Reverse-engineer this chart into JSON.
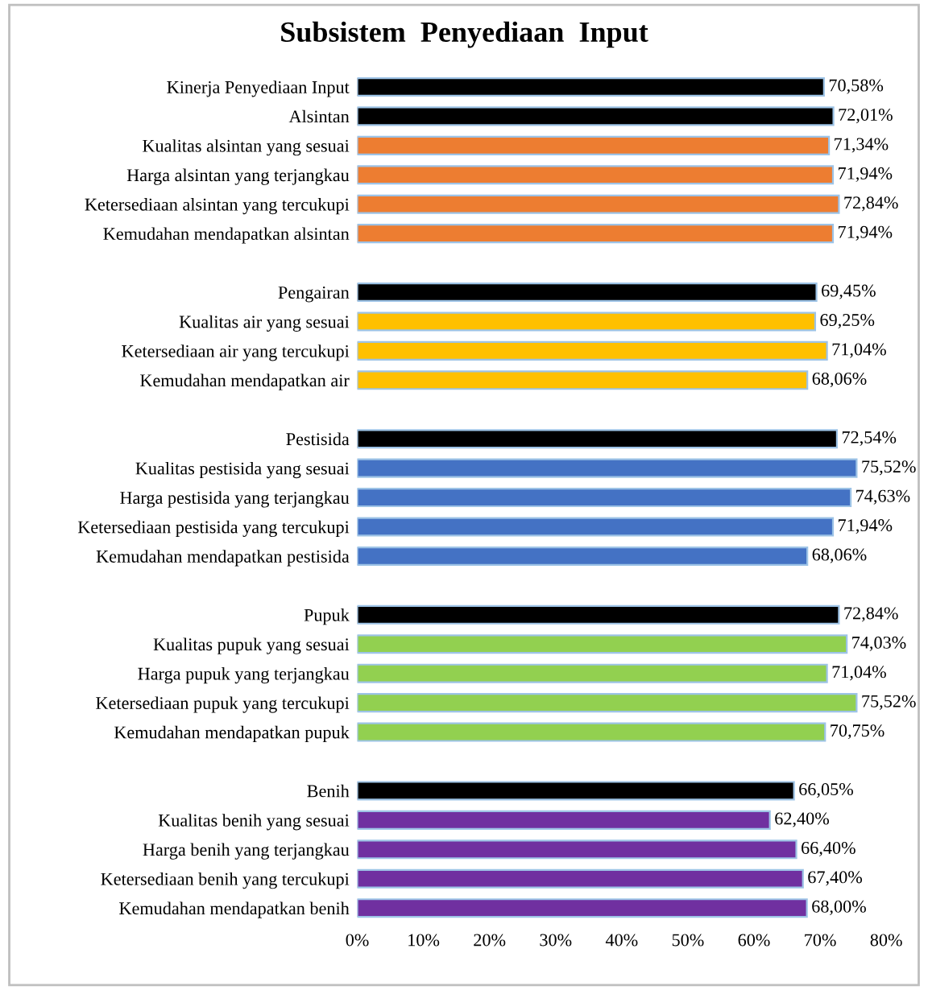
{
  "chart_data": {
    "type": "bar",
    "orientation": "horizontal",
    "title": "Subsistem  Penyediaan  Input",
    "categories": [
      "Kinerja Penyediaan Input",
      "Alsintan",
      "Kualitas alsintan yang sesuai",
      "Harga alsintan yang terjangkau",
      "Ketersediaan alsintan yang tercukupi",
      "Kemudahan mendapatkan alsintan",
      null,
      "Pengairan",
      "Kualitas air yang sesuai",
      "Ketersediaan air yang tercukupi",
      "Kemudahan mendapatkan air",
      null,
      "Pestisida",
      "Kualitas pestisida yang sesuai",
      "Harga pestisida yang terjangkau",
      "Ketersediaan pestisida yang tercukupi",
      "Kemudahan mendapatkan pestisida",
      null,
      "Pupuk",
      "Kualitas pupuk yang sesuai",
      "Harga pupuk yang terjangkau",
      "Ketersediaan pupuk yang tercukupi",
      "Kemudahan mendapatkan pupuk",
      null,
      "Benih",
      "Kualitas benih yang sesuai",
      "Harga benih yang terjangkau",
      "Ketersediaan benih yang tercukupi",
      "Kemudahan mendapatkan benih"
    ],
    "values": [
      70.58,
      72.01,
      71.34,
      71.94,
      72.84,
      71.94,
      null,
      69.45,
      69.25,
      71.04,
      68.06,
      null,
      72.54,
      75.52,
      74.63,
      71.94,
      68.06,
      null,
      72.84,
      74.03,
      71.04,
      75.52,
      70.75,
      null,
      66.05,
      62.4,
      66.4,
      67.4,
      68.0
    ],
    "value_labels": [
      "70,58%",
      "72,01%",
      "71,34%",
      "71,94%",
      "72,84%",
      "71,94%",
      null,
      "69,45%",
      "69,25%",
      "71,04%",
      "68,06%",
      null,
      "72,54%",
      "75,52%",
      "74,63%",
      "71,94%",
      "68,06%",
      null,
      "72,84%",
      "74,03%",
      "71,04%",
      "75,52%",
      "70,75%",
      null,
      "66,05%",
      "62,40%",
      "66,40%",
      "67,40%",
      "68,00%"
    ],
    "colors": [
      "#000000",
      "#000000",
      "#ed7d31",
      "#ed7d31",
      "#ed7d31",
      "#ed7d31",
      null,
      "#000000",
      "#ffc000",
      "#ffc000",
      "#ffc000",
      null,
      "#000000",
      "#4472c4",
      "#4472c4",
      "#4472c4",
      "#4472c4",
      null,
      "#000000",
      "#92d050",
      "#92d050",
      "#92d050",
      "#92d050",
      null,
      "#000000",
      "#7030a0",
      "#7030a0",
      "#7030a0",
      "#7030a0"
    ],
    "xlim": [
      0,
      80
    ],
    "xticks": [
      {
        "value": 0,
        "label": "0%"
      },
      {
        "value": 10,
        "label": "10%"
      },
      {
        "value": 20,
        "label": "20%"
      },
      {
        "value": 30,
        "label": "30%"
      },
      {
        "value": 40,
        "label": "40%"
      },
      {
        "value": 50,
        "label": "50%"
      },
      {
        "value": 60,
        "label": "60%"
      },
      {
        "value": 70,
        "label": "70%"
      },
      {
        "value": 80,
        "label": "80%"
      }
    ],
    "grid": false,
    "legend": false
  }
}
